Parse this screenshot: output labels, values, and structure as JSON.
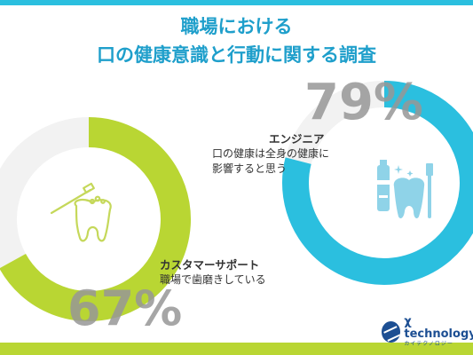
{
  "title": {
    "line1": "職場における",
    "line2": "口の健康意識と行動に関する調査"
  },
  "colors": {
    "green": "#b9d633",
    "blue": "#2bbfdf",
    "track": "#f2f2f2",
    "title": "#1f9fcb"
  },
  "chart_data": [
    {
      "type": "pie",
      "series": [
        {
          "name": "カスタマーサポート",
          "values": [
            67,
            33
          ]
        }
      ],
      "value_label": "67%",
      "description": "職場で歯磨きしている",
      "icon": "tooth-with-brush-icon"
    },
    {
      "type": "pie",
      "series": [
        {
          "name": "エンジニア",
          "values": [
            79,
            21
          ]
        }
      ],
      "value_label": "79%",
      "description_lines": [
        "口の健康は全身の健康に",
        "影響すると思う"
      ],
      "icon": "dental-care-icon"
    }
  ],
  "logo": {
    "text": "χ technology",
    "subtext": "カイテクノロジー"
  }
}
